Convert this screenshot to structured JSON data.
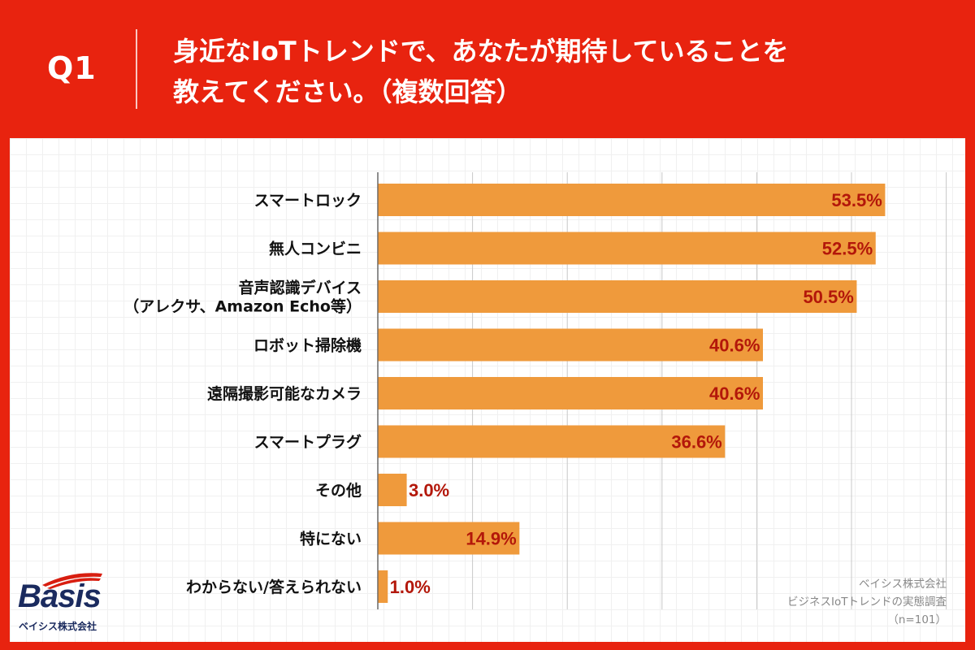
{
  "header": {
    "q_label": "Q1",
    "title_line1": "身近なIoTトレンドで、あなたが期待していることを",
    "title_line2": "教えてください。（複数回答）"
  },
  "chart_data": {
    "type": "bar",
    "orientation": "horizontal",
    "categories": [
      [
        "スマートロック"
      ],
      [
        "無人コンビニ"
      ],
      [
        "音声認識デバイス",
        "（アレクサ、Amazon Echo等）"
      ],
      [
        "ロボット掃除機"
      ],
      [
        "遠隔撮影可能なカメラ"
      ],
      [
        "スマートプラグ"
      ],
      [
        "その他"
      ],
      [
        "特にない"
      ],
      [
        "わからない/答えられない"
      ]
    ],
    "values": [
      53.5,
      52.5,
      50.5,
      40.6,
      40.6,
      36.6,
      3.0,
      14.9,
      1.0
    ],
    "value_labels": [
      "53.5%",
      "52.5%",
      "50.5%",
      "40.6%",
      "40.6%",
      "36.6%",
      "3.0%",
      "14.9%",
      "1.0%"
    ],
    "xlim": [
      0,
      60
    ],
    "grid": true,
    "bar_color": "#ef9a3c",
    "label_color": "#b3170a"
  },
  "logo": {
    "name": "Basis",
    "company": "ベイシス株式会社"
  },
  "source": {
    "line1": "ベイシス株式会社",
    "line2": "ビジネスIoTトレンドの実態調査",
    "line3": "（n=101）"
  },
  "colors": {
    "background": "#e8230f",
    "panel": "#ffffff",
    "logo_blue": "#1a2a5e"
  }
}
